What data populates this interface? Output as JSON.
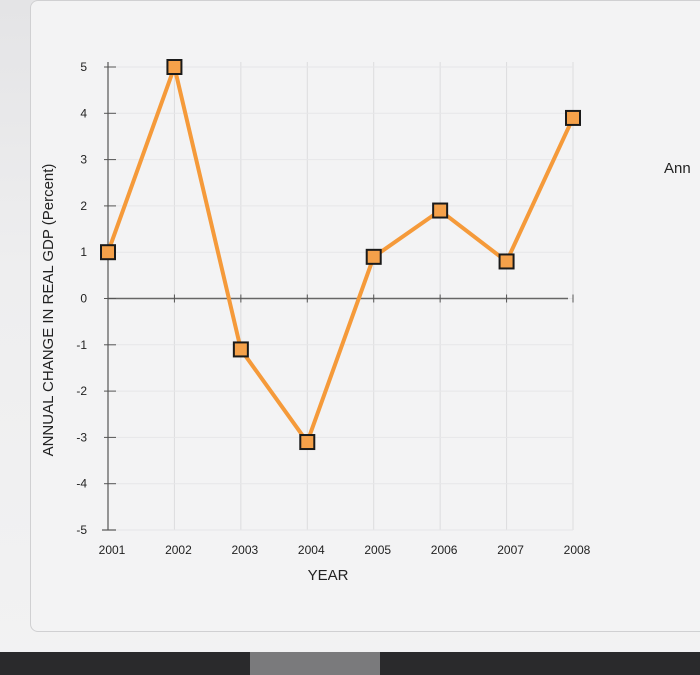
{
  "side_text": "Ann",
  "chart_data": {
    "type": "line",
    "xlabel": "YEAR",
    "ylabel": "ANNUAL CHANGE IN REAL GDP (Percent)",
    "x": [
      "2001",
      "2002",
      "2003",
      "2004",
      "2005",
      "2006",
      "2007",
      "2008"
    ],
    "y_ticks": [
      "5",
      "4",
      "3",
      "2",
      "1",
      "0",
      "-1",
      "-2",
      "-3",
      "-4",
      "-5"
    ],
    "ylim": [
      -5,
      5
    ],
    "grid": true,
    "series": [
      {
        "values": [
          1.0,
          5.0,
          -1.1,
          -3.1,
          0.9,
          1.9,
          0.8,
          3.9
        ],
        "color": "#f59a3a",
        "marker": "square",
        "marker_fill": "#f5a14a",
        "marker_edge": "#1a1a1a"
      }
    ]
  }
}
